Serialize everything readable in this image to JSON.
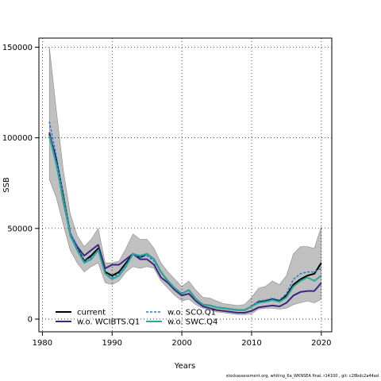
{
  "chart_data": {
    "type": "line",
    "title": "",
    "xlabel": "Years",
    "ylabel": "SSB",
    "xlim": [
      1979.5,
      2021.5
    ],
    "ylim": [
      -7000,
      155000
    ],
    "x_ticks": [
      1980,
      1990,
      2000,
      2010,
      2020
    ],
    "y_ticks": [
      0,
      50000,
      100000,
      150000
    ],
    "x_tick_labels": [
      "1980",
      "1990",
      "2000",
      "2010",
      "2020"
    ],
    "y_tick_labels": [
      "0",
      "50000",
      "100000",
      "150000"
    ],
    "grid": true,
    "legend_position": "bottom-left",
    "years": [
      1981,
      1982,
      1983,
      1984,
      1985,
      1986,
      1987,
      1988,
      1989,
      1990,
      1991,
      1992,
      1993,
      1994,
      1995,
      1996,
      1997,
      1998,
      1999,
      2000,
      2001,
      2002,
      2003,
      2004,
      2005,
      2006,
      2007,
      2008,
      2009,
      2010,
      2011,
      2012,
      2013,
      2014,
      2015,
      2016,
      2017,
      2018,
      2019,
      2020
    ],
    "band": {
      "upper": [
        150000,
        115000,
        82000,
        58000,
        46000,
        40000,
        44000,
        50000,
        31000,
        31000,
        32000,
        39000,
        47000,
        44000,
        44000,
        39000,
        31000,
        26000,
        22000,
        18000,
        21000,
        16000,
        12000,
        11500,
        10000,
        8500,
        8000,
        7500,
        8000,
        12000,
        17000,
        18000,
        21000,
        19000,
        24000,
        36000,
        40000,
        40000,
        39000,
        51000
      ],
      "lower": [
        77000,
        67000,
        52000,
        38000,
        31000,
        26000,
        29000,
        31000,
        20000,
        19000,
        21000,
        26000,
        29000,
        28000,
        29000,
        28000,
        21000,
        17000,
        13000,
        10000,
        11000,
        8000,
        6000,
        5000,
        4000,
        3500,
        3000,
        2500,
        2500,
        3000,
        5500,
        6000,
        6000,
        5500,
        6000,
        8000,
        9000,
        10000,
        9000,
        11000
      ]
    },
    "series": [
      {
        "name": "current",
        "color": "#000000",
        "dash": "solid",
        "width": 2,
        "values": [
          102000,
          88000,
          68000,
          47000,
          39000,
          32000,
          35000,
          39000,
          26000,
          24000,
          26000,
          31000,
          36000,
          34000,
          36000,
          33000,
          26000,
          21000,
          17000,
          14000,
          16000,
          11000,
          8000,
          7500,
          6500,
          6000,
          5500,
          5000,
          5000,
          7000,
          9500,
          10000,
          11000,
          10000,
          13000,
          19000,
          22000,
          24000,
          25000,
          31000
        ]
      },
      {
        "name": "w.o. WCIBTS.Q1",
        "color": "#3d2680",
        "dash": "solid",
        "width": 2,
        "values": [
          103000,
          86000,
          65000,
          47000,
          40000,
          35000,
          38000,
          41000,
          28000,
          30000,
          30000,
          33000,
          36000,
          33000,
          33000,
          30000,
          23000,
          20000,
          16000,
          13000,
          14000,
          10000,
          7000,
          6000,
          5000,
          4500,
          4000,
          3500,
          3500,
          4500,
          6500,
          7000,
          7500,
          7000,
          9000,
          13000,
          15000,
          15500,
          15500,
          20000
        ]
      },
      {
        "name": "w.o. SCO.Q1",
        "color": "#1f78d8",
        "dash": "dashed",
        "width": 1.5,
        "values": [
          109000,
          90000,
          68000,
          48000,
          39000,
          32000,
          34000,
          38000,
          25000,
          23000,
          25000,
          30000,
          36000,
          34000,
          35000,
          32000,
          26000,
          21000,
          17000,
          14000,
          16000,
          11000,
          8000,
          7500,
          6500,
          6000,
          5500,
          5000,
          5000,
          7000,
          10000,
          10500,
          11500,
          10500,
          14000,
          22000,
          25000,
          26000,
          26000,
          28000
        ]
      },
      {
        "name": "w.o. SWC.Q4",
        "color": "#2aa99a",
        "dash": "solid",
        "width": 2,
        "values": [
          101000,
          85000,
          66000,
          46000,
          38000,
          31000,
          33000,
          38000,
          25000,
          22000,
          24000,
          29000,
          36000,
          35000,
          36000,
          33000,
          26000,
          21000,
          17000,
          14000,
          16000,
          11000,
          8000,
          7500,
          6500,
          6000,
          5500,
          5000,
          5000,
          7000,
          9000,
          9500,
          10500,
          9500,
          12000,
          18000,
          21000,
          23000,
          21000,
          24000
        ]
      }
    ]
  },
  "footer_text": "stockassessment.org, whiting_6a_WKNSEA final, r14100 , git: c28bdc2a44ad"
}
